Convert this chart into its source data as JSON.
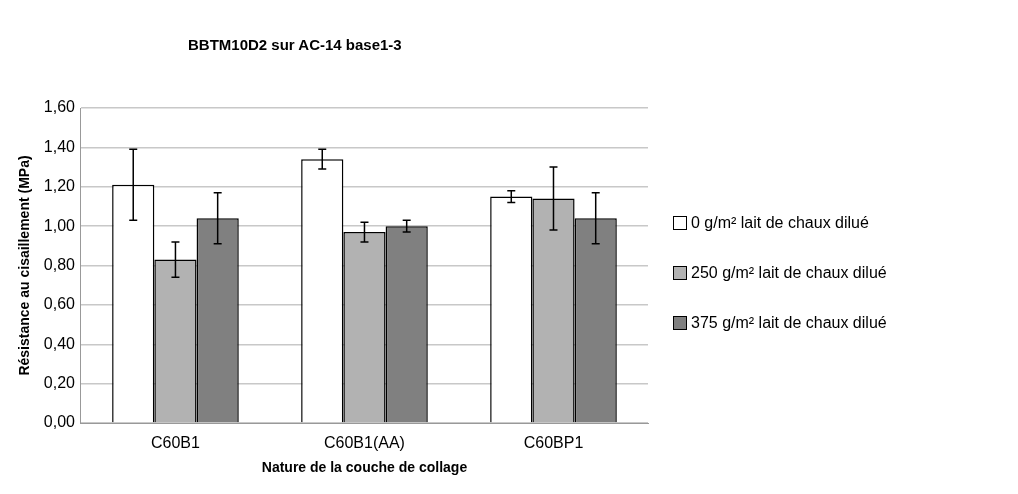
{
  "chart_data": {
    "type": "bar",
    "title": "BBTM10D2 sur AC-14 base1-3",
    "xlabel": "Nature de la couche de collage",
    "ylabel": "Résistance au cisaillement (MPa)",
    "categories": [
      "C60B1",
      "C60B1(AA)",
      "C60BP1"
    ],
    "series": [
      {
        "name": "0 g/m² lait de chaux dilué",
        "color": "#ffffff",
        "values": [
          1.21,
          1.34,
          1.15
        ],
        "errors": [
          0.18,
          0.05,
          0.03
        ]
      },
      {
        "name": "250 g/m² lait de chaux dilué",
        "color": "#b2b2b2",
        "values": [
          0.83,
          0.97,
          1.14
        ],
        "errors": [
          0.09,
          0.05,
          0.16
        ]
      },
      {
        "name": "375 g/m² lait de chaux dilué",
        "color": "#808080",
        "values": [
          1.04,
          1.0,
          1.04
        ],
        "errors": [
          0.13,
          0.03,
          0.13
        ]
      }
    ],
    "ylim": [
      0,
      1.6
    ],
    "yticks": [
      {
        "value": 0,
        "label": "0,00"
      },
      {
        "value": 0.2,
        "label": "0,20"
      },
      {
        "value": 0.4,
        "label": "0,40"
      },
      {
        "value": 0.6,
        "label": "0,60"
      },
      {
        "value": 0.8,
        "label": "0,80"
      },
      {
        "value": 1.0,
        "label": "1,00"
      },
      {
        "value": 1.2,
        "label": "1,20"
      },
      {
        "value": 1.4,
        "label": "1,40"
      },
      {
        "value": 1.6,
        "label": "1,60"
      }
    ],
    "grid": "y",
    "legend": "right"
  }
}
